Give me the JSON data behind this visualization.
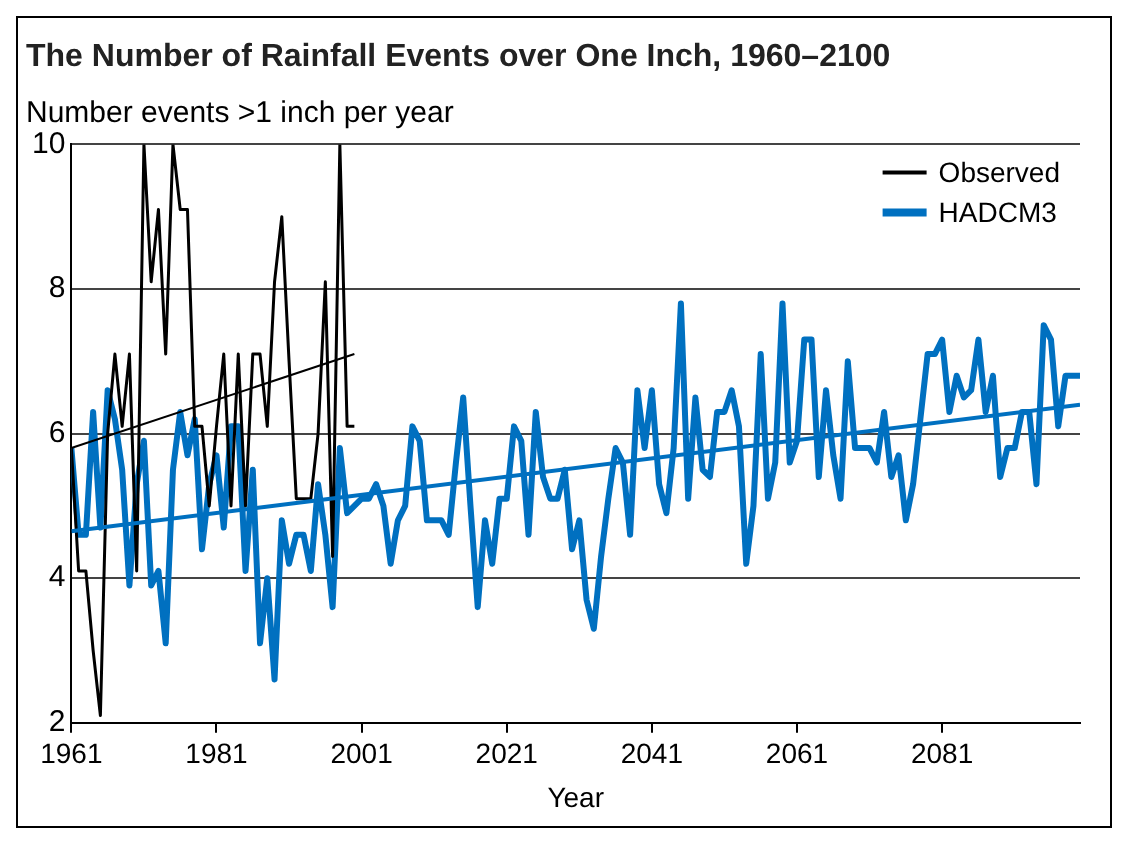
{
  "chart_data": {
    "type": "line",
    "title": "The Number of Rainfall Events over One Inch, 1960–2100",
    "ylabel": "Number events >1 inch per year",
    "xlabel": "Year",
    "xlim": [
      1961,
      2100
    ],
    "xticks": [
      1961,
      1981,
      2001,
      2021,
      2041,
      2061,
      2081
    ],
    "ylim": [
      2,
      10
    ],
    "yticks": [
      2,
      4,
      6,
      8,
      10
    ],
    "grid": "y",
    "legend": "top right",
    "marker": "none",
    "line_style": "solid",
    "series": [
      {
        "name": "Observed",
        "color": "#000000",
        "x": [
          1961,
          1962,
          1963,
          1964,
          1965,
          1966,
          1967,
          1968,
          1969,
          1970,
          1971,
          1972,
          1973,
          1974,
          1975,
          1976,
          1977,
          1978,
          1979,
          1980,
          1981,
          1982,
          1983,
          1984,
          1985,
          1986,
          1987,
          1988,
          1989,
          1990,
          1991,
          1992,
          1993,
          1994,
          1995,
          1996,
          1997,
          1998,
          1999,
          2000
        ],
        "values": [
          5.8,
          4.1,
          4.1,
          3.0,
          2.1,
          6.0,
          7.1,
          6.1,
          7.1,
          4.1,
          10,
          8.1,
          9.1,
          7.1,
          10,
          9.1,
          9.1,
          6.1,
          6.1,
          5.0,
          6.1,
          7.1,
          5.0,
          7.1,
          5.0,
          7.1,
          7.1,
          6.1,
          8.1,
          9.0,
          7.0,
          5.1,
          5.1,
          5.1,
          6.0,
          8.1,
          4.3,
          10,
          6.1,
          6.1
        ]
      },
      {
        "name": "HADCM3",
        "color": "#0070c0",
        "x": [
          1961,
          1962,
          1963,
          1964,
          1965,
          1966,
          1967,
          1968,
          1969,
          1970,
          1971,
          1972,
          1973,
          1974,
          1975,
          1976,
          1977,
          1978,
          1979,
          1980,
          1981,
          1982,
          1983,
          1984,
          1985,
          1986,
          1987,
          1988,
          1989,
          1990,
          1991,
          1992,
          1993,
          1994,
          1995,
          1996,
          1997,
          1998,
          1999,
          2000,
          2001,
          2002,
          2003,
          2004,
          2005,
          2006,
          2007,
          2008,
          2009,
          2010,
          2011,
          2012,
          2013,
          2014,
          2015,
          2016,
          2017,
          2018,
          2019,
          2020,
          2021,
          2022,
          2023,
          2024,
          2025,
          2026,
          2027,
          2028,
          2029,
          2030,
          2031,
          2032,
          2033,
          2034,
          2035,
          2036,
          2037,
          2038,
          2039,
          2040,
          2041,
          2042,
          2043,
          2044,
          2045,
          2046,
          2047,
          2048,
          2049,
          2050,
          2051,
          2052,
          2053,
          2054,
          2055,
          2056,
          2057,
          2058,
          2059,
          2060,
          2061,
          2062,
          2063,
          2064,
          2065,
          2066,
          2067,
          2068,
          2069,
          2070,
          2071,
          2072,
          2073,
          2074,
          2075,
          2076,
          2077,
          2078,
          2079,
          2080,
          2081,
          2082,
          2083,
          2084,
          2085,
          2086,
          2087,
          2088,
          2089,
          2090,
          2091,
          2092,
          2093,
          2094,
          2095,
          2096,
          2097,
          2098,
          2099,
          2100
        ],
        "values": [
          5.8,
          4.6,
          4.6,
          6.3,
          4.7,
          6.6,
          6.2,
          5.5,
          3.9,
          5.3,
          5.9,
          3.9,
          4.1,
          3.1,
          5.5,
          6.3,
          5.7,
          6.2,
          4.4,
          5.3,
          5.7,
          4.7,
          6.1,
          6.1,
          4.1,
          5.5,
          3.1,
          4.0,
          2.6,
          4.8,
          4.2,
          4.6,
          4.6,
          4.1,
          5.3,
          4.6,
          3.6,
          5.8,
          4.9,
          5.0,
          5.1,
          5.1,
          5.3,
          5.0,
          4.2,
          4.8,
          5.0,
          6.1,
          5.9,
          4.8,
          4.8,
          4.8,
          4.6,
          5.6,
          6.5,
          5.0,
          3.6,
          4.8,
          4.2,
          5.1,
          5.1,
          6.1,
          5.9,
          4.6,
          6.3,
          5.4,
          5.1,
          5.1,
          5.5,
          4.4,
          4.8,
          3.7,
          3.3,
          4.3,
          5.1,
          5.8,
          5.6,
          4.6,
          6.6,
          5.8,
          6.6,
          5.3,
          4.9,
          5.8,
          7.8,
          5.1,
          6.5,
          5.5,
          5.4,
          6.3,
          6.3,
          6.6,
          6.1,
          4.2,
          5.0,
          7.1,
          5.1,
          5.6,
          7.8,
          5.6,
          5.9,
          7.3,
          7.3,
          5.4,
          6.6,
          5.7,
          5.1,
          7.0,
          5.8,
          5.8,
          5.8,
          5.6,
          6.3,
          5.4,
          5.7,
          4.8,
          5.3,
          6.2,
          7.1,
          7.1,
          7.3,
          6.3,
          6.8,
          6.5,
          6.6,
          7.3,
          6.3,
          6.8,
          5.4,
          5.8,
          5.8,
          6.3,
          6.3,
          5.3,
          7.5,
          7.3,
          6.1,
          6.8,
          6.8,
          6.8
        ]
      },
      {
        "type": "line",
        "color": "#000000",
        "x": [
          1961,
          2000
        ],
        "values": [
          5.8,
          7.1
        ]
      },
      {
        "type": "line",
        "color": "#0070c0",
        "x": [
          1961,
          2100
        ],
        "values": [
          4.65,
          6.4
        ]
      }
    ]
  }
}
